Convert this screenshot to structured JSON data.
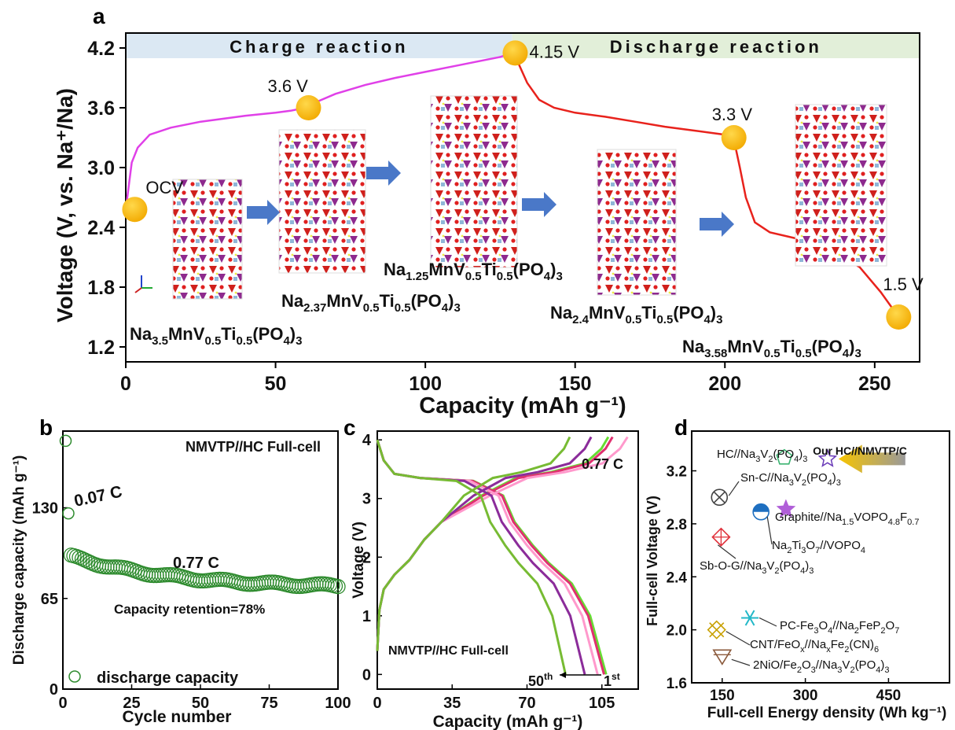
{
  "figure": {
    "panels": {
      "a": "a",
      "b": "b",
      "c": "c",
      "d": "d"
    }
  },
  "chart_data": [
    {
      "type": "line",
      "panel": "a",
      "xlabel": "Capacity (mAh g⁻¹)",
      "ylabel": "Voltage (V, vs. Na⁺/Na)",
      "xlim": [
        0,
        265
      ],
      "ylim": [
        1.05,
        4.35
      ],
      "xticks": [
        "0",
        "50",
        "100",
        "150",
        "200",
        "250"
      ],
      "yticks": [
        "1.2",
        "1.8",
        "2.4",
        "3.0",
        "3.6",
        "4.2"
      ],
      "bands": [
        {
          "label": "Charge reaction",
          "color": "#dbe8f3",
          "from": 0,
          "to": 129
        },
        {
          "label": "Discharge reaction",
          "color": "#e2efd9",
          "from": 129,
          "to": 265
        }
      ],
      "series": [
        {
          "color": "#e040e8",
          "x": [
            0,
            2,
            4,
            8,
            15,
            25,
            40,
            50,
            55,
            60,
            63,
            70,
            80,
            90,
            100,
            110,
            120,
            125,
            129
          ],
          "y": [
            2.58,
            3.05,
            3.2,
            3.33,
            3.4,
            3.46,
            3.52,
            3.55,
            3.57,
            3.6,
            3.65,
            3.74,
            3.83,
            3.9,
            3.96,
            4.02,
            4.08,
            4.11,
            4.15
          ]
        },
        {
          "color": "#e8221c",
          "x": [
            129,
            131,
            134,
            138,
            143,
            150,
            160,
            170,
            180,
            190,
            200,
            203,
            205,
            207,
            210,
            215,
            225,
            235,
            245,
            252,
            258
          ],
          "y": [
            4.15,
            4.05,
            3.85,
            3.68,
            3.6,
            3.55,
            3.51,
            3.46,
            3.41,
            3.37,
            3.33,
            3.28,
            3.0,
            2.7,
            2.45,
            2.35,
            2.28,
            2.18,
            2.0,
            1.75,
            1.5
          ]
        }
      ],
      "markers": [
        {
          "x": 3,
          "y": 2.58,
          "label": "OCV"
        },
        {
          "x": 61,
          "y": 3.6,
          "label": "3.6 V"
        },
        {
          "x": 130,
          "y": 4.15,
          "label": "4.15 V"
        },
        {
          "x": 203,
          "y": 3.3,
          "label": "3.3 V"
        },
        {
          "x": 258,
          "y": 1.5,
          "label": "1.5 V"
        }
      ],
      "compounds": [
        {
          "pre": "Na",
          "na": "3.5",
          "mid": "MnV",
          "v": "0.5",
          "ti": "Ti",
          "tisub": "0.5",
          "post": "(PO",
          "o": "4",
          "end": ")",
          "n": "3"
        },
        {
          "pre": "Na",
          "na": "2.37",
          "mid": "MnV",
          "v": "0.5",
          "ti": "Ti",
          "tisub": "0.5",
          "post": "(PO",
          "o": "4",
          "end": ")",
          "n": "3"
        },
        {
          "pre": "Na",
          "na": "1.25",
          "mid": "MnV",
          "v": "0.5",
          "ti": "Ti",
          "tisub": "0.5",
          "post": "(PO",
          "o": "4",
          "end": ")",
          "n": "3"
        },
        {
          "pre": "Na",
          "na": "2.4",
          "mid": "MnV",
          "v": "0.5",
          "ti": "Ti",
          "tisub": "0.5",
          "post": "(PO",
          "o": "4",
          "end": ")",
          "n": "3"
        },
        {
          "pre": "Na",
          "na": "3.58",
          "mid": "MnV",
          "v": "0.5",
          "ti": "Ti",
          "tisub": "0.5",
          "post": "(PO",
          "o": "4",
          "end": ")",
          "n": "3"
        }
      ]
    },
    {
      "type": "scatter",
      "panel": "b",
      "xlabel": "Cycle number",
      "ylabel": "Discharge capacity (mAh g⁻¹)",
      "xlim": [
        0,
        100
      ],
      "ylim": [
        0,
        185
      ],
      "xticks": [
        "0",
        "25",
        "50",
        "75",
        "100"
      ],
      "yticks": [
        "0",
        "65",
        "130"
      ],
      "title": "NMVTP//HC Full-cell",
      "annotations": [
        "0.07 C",
        "0.77 C",
        "Capacity retention=78%"
      ],
      "legend": "discharge capacity",
      "x_first": [
        1,
        2
      ],
      "y_first": [
        178,
        126
      ],
      "x_start": 3,
      "decay": {
        "from": 95,
        "to": 74
      },
      "color": "#2e8b2e"
    },
    {
      "type": "line",
      "panel": "c",
      "xlabel": "Capacity (mAh g⁻¹)",
      "ylabel": "Voltage (V)",
      "xlim": [
        0,
        122
      ],
      "ylim": [
        -0.25,
        4.15
      ],
      "xticks": [
        "0",
        "35",
        "70",
        "105"
      ],
      "yticks": [
        "0",
        "1",
        "2",
        "3",
        "4"
      ],
      "title": "NMVTP//HC Full-cell",
      "rate": "0.77 C",
      "first_label": "1",
      "first_sup": "st",
      "last_label": "50",
      "last_sup": "th",
      "series": [
        {
          "color": "#66dd33",
          "cap_max": 107,
          "charge_max": 108
        },
        {
          "color": "#e03070",
          "cap_max": 106,
          "charge_max": 110
        },
        {
          "color": "#ff99cc",
          "cap_max": 103,
          "charge_max": 117
        },
        {
          "color": "#8b2c9a",
          "cap_max": 97,
          "charge_max": 100
        },
        {
          "color": "#77bb33",
          "cap_max": 88,
          "charge_max": 90
        }
      ]
    },
    {
      "type": "scatter",
      "panel": "d",
      "xlabel": "Full-cell Energy density (Wh kg⁻¹)",
      "ylabel": "Full-cell Voltage (V)",
      "xlim": [
        95,
        560
      ],
      "ylim": [
        1.6,
        3.5
      ],
      "xticks": [
        "150",
        "300",
        "450"
      ],
      "yticks": [
        "1.6",
        "2.0",
        "2.4",
        "2.8",
        "3.2"
      ],
      "points": [
        {
          "x": 340,
          "y": 3.29,
          "label": "Our HC//NMVTP/C",
          "color": "#6a3bb8"
        },
        {
          "x": 262,
          "y": 3.3,
          "label": "HC//Na3V2(PO4)3",
          "color": "#3cb371"
        },
        {
          "x": 145,
          "y": 3.0,
          "label": "Sn-C//Na3V2(PO4)3",
          "color": "#444444"
        },
        {
          "x": 220,
          "y": 2.89,
          "label": "Na2Ti3O7//VOPO4",
          "color": "#1e6fc0"
        },
        {
          "x": 265,
          "y": 2.91,
          "label": "Graphite//Na1.5VOPO4.8F0.7",
          "color": "#b05fd8"
        },
        {
          "x": 148,
          "y": 2.7,
          "label": "Sb-O-G//Na3V2(PO4)3",
          "color": "#e0303a"
        },
        {
          "x": 200,
          "y": 2.09,
          "label": "PC-Fe3O4//Na2FeP2O7",
          "color": "#23b8c8"
        },
        {
          "x": 140,
          "y": 2.0,
          "label": "CNT/FeOx//NaxFe2(CN)6",
          "color": "#c8a000"
        },
        {
          "x": 150,
          "y": 1.8,
          "label": "2NiO/Fe2O3//Na3V2(PO4)3",
          "color": "#8b5a3c"
        }
      ]
    }
  ]
}
